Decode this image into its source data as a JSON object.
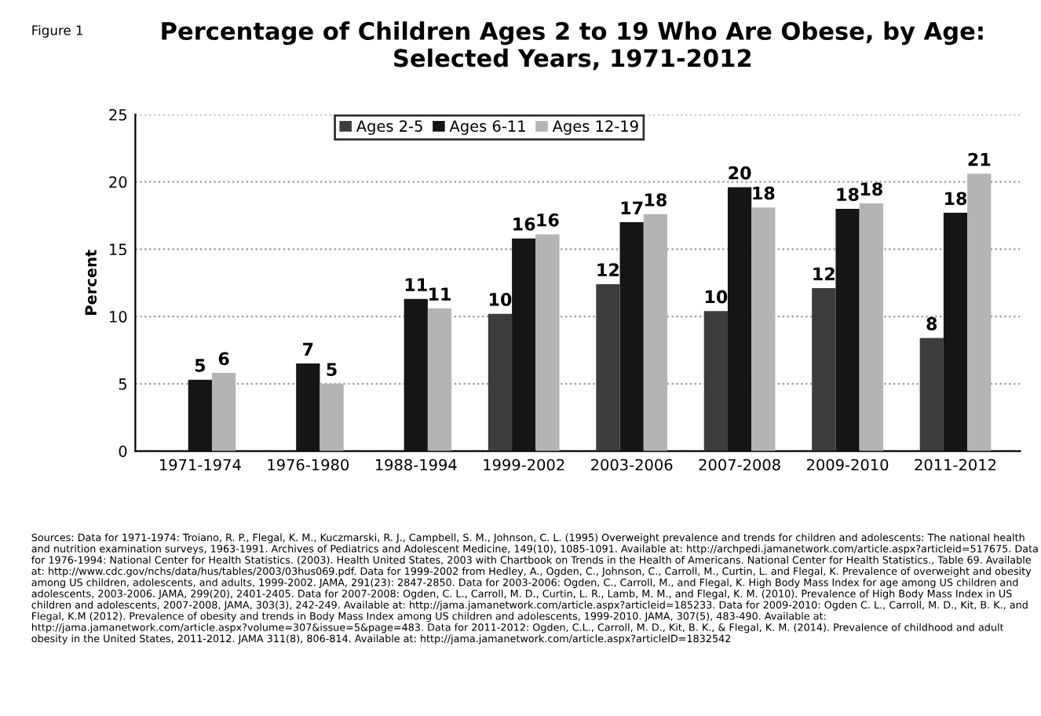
{
  "chart_data": {
    "type": "bar",
    "title": "Percentage of Children Ages 2 to 19 Who Are Obese, by Age:\nSelected Years, 1971-2012",
    "ylabel": "Percent",
    "categories": [
      "1971-1974",
      "1976-1980",
      "1988-1994",
      "1999-2002",
      "2003-2006",
      "2007-2008",
      "2009-2010",
      "2011-2012"
    ],
    "series": [
      {
        "name": "Ages 2-5",
        "color": "#3c3c3c",
        "values": [
          null,
          null,
          null,
          10.2,
          12.4,
          10.4,
          12.1,
          8.4
        ],
        "value_labels": [
          null,
          null,
          null,
          "10",
          "12",
          "10",
          "12",
          "8"
        ]
      },
      {
        "name": "Ages 6-11",
        "color": "#151515",
        "values": [
          5.3,
          6.5,
          11.3,
          15.8,
          17.0,
          19.6,
          18.0,
          17.7
        ],
        "value_labels": [
          "5",
          "7",
          "11",
          "16",
          "17",
          "20",
          "18",
          "18"
        ]
      },
      {
        "name": "Ages 12-19",
        "color": "#b4b4b4",
        "values": [
          5.8,
          5.0,
          10.6,
          16.1,
          17.6,
          18.1,
          18.4,
          20.6
        ],
        "value_labels": [
          "6",
          "5",
          "11",
          "16",
          "18",
          "18",
          "18",
          "21"
        ]
      }
    ],
    "ylim": [
      0,
      25
    ],
    "yticks": [
      0,
      5,
      10,
      15,
      20,
      25
    ],
    "grid": "y",
    "legend": "top",
    "annotations": [
      "Figure 1",
      "Sources: Data for 1971-1974: Troiano, R. P., Flegal, K. M., Kuczmarski, R. J., Campbell, S. M., Johnson, C. L. (1995) Overweight prevalence and trends for children and adolescents: The national health and nutrition examination surveys, 1963-1991. Archives of Pediatrics and Adolescent Medicine, 149(10), 1085-1091. Available at: http://archpedi.jamanetwork.com/article.aspx?articleid=517675. Data for 1976-1994: National Center for Health Statistics. (2003). Health United States, 2003 with Chartbook on Trends in the Health of Americans. National Center for Health Statistics., Table 69. Available at: http://www.cdc.gov/nchs/data/hus/tables/2003/03hus069.pdf. Data for 1999-2002 from Hedley, A., Ogden, C., Johnson, C., Carroll, M., Curtin, L. and Flegal, K. Prevalence of overweight and obesity among US children, adolescents, and adults, 1999-2002. JAMA, 291(23): 2847-2850. Data for 2003-2006: Ogden, C., Carroll, M., and Flegal, K. High Body Mass Index for age among US children and adolescents, 2003-2006. JAMA, 299(20), 2401-2405. Data for 2007-2008: Ogden, C. L., Carroll, M. D., Curtin, L. R., Lamb, M. M., and Flegal, K. M. (2010). Prevalence of High Body Mass Index in US children and adolescents, 2007-2008, JAMA, 303(3), 242-249. Available at: http://jama.jamanetwork.com/article.aspx?articleid=185233. Data for 2009-2010: Ogden C. L., Carroll, M. D., Kit, B. K., and Flegal, K.M (2012). Prevalence of obesity and trends in Body Mass Index among US children and adolescents, 1999-2010. JAMA, 307(5), 483-490. Available at: http://jama.jamanetwork.com/article.aspx?volume=307&issue=5&page=483. Data for 2011-2012: Ogden, C.L., Carroll, M. D., Kit, B. K., & Flegal, K. M. (2014). Prevalence of childhood and adult obesity in the United States, 2011-2012. JAMA 311(8), 806-814. Available at: http://jama.jamanetwork.com/article.aspx?articleID=1832542"
    ]
  }
}
